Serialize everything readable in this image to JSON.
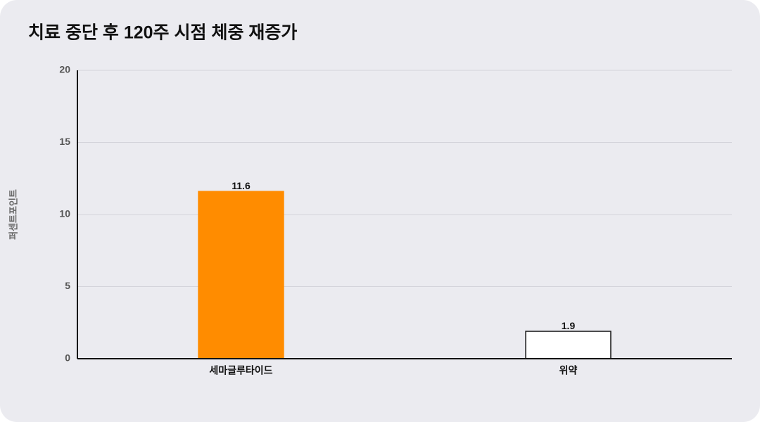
{
  "chart_data": {
    "type": "bar",
    "title": "치료 중단 후 120주 시점 체중 재증가",
    "y_label": "퍼센트포인트",
    "categories": [
      "세마글루타이드",
      "위약"
    ],
    "values": [
      11.6,
      1.9
    ],
    "colors": [
      "#ff8c00",
      "#ffffff"
    ],
    "edge_colors": [
      "#ff8c00",
      "#1a1a1a"
    ],
    "ylim": [
      0,
      20
    ],
    "yticks": [
      0,
      5,
      10,
      15,
      20
    ],
    "grid": true,
    "data_labels": true
  }
}
